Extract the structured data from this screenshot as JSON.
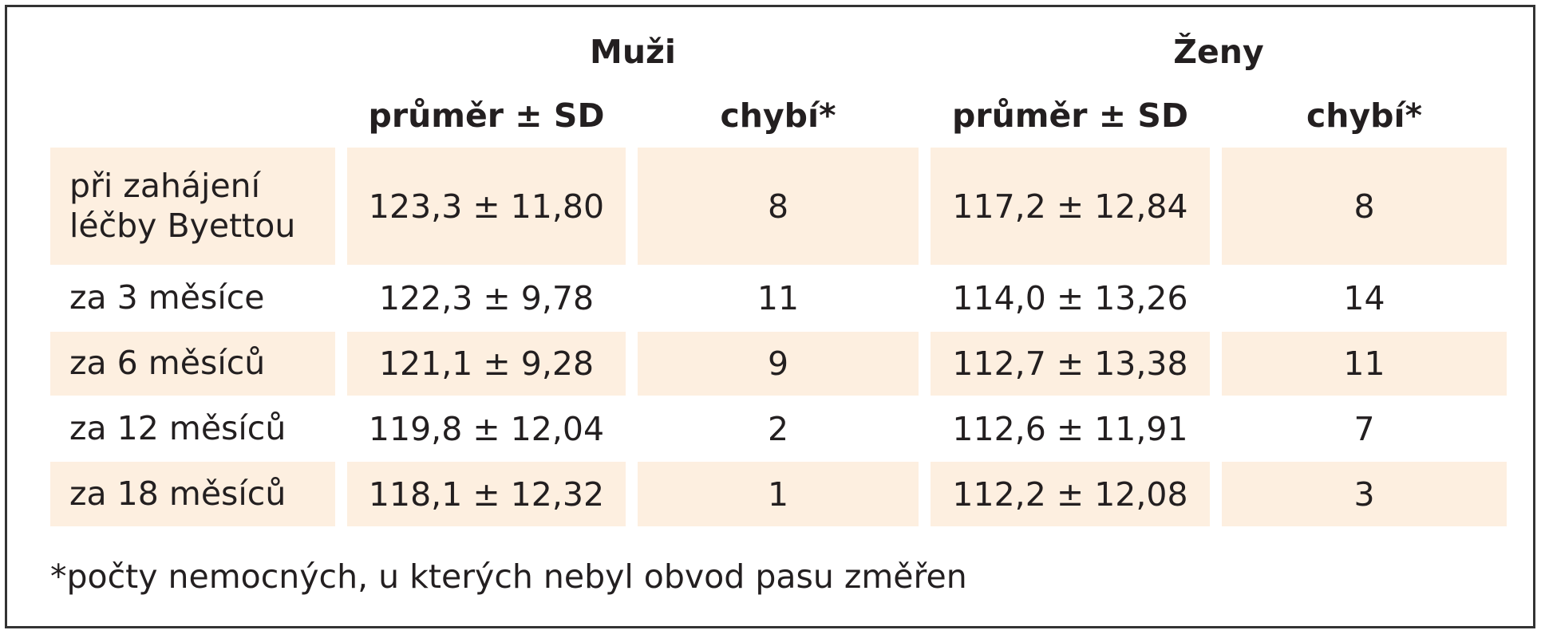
{
  "table": {
    "groups": [
      "Muži",
      "Ženy"
    ],
    "subheaders": [
      "průměr ± SD",
      "chybí*",
      "průměr ± SD",
      "chybí*"
    ],
    "rows": [
      [
        "při zahájení léčby Byettou",
        "123,3 ± 11,80",
        "8",
        "117,2 ± 12,84",
        "8"
      ],
      [
        "za 3 měsíce",
        "122,3 ± 9,78",
        "11",
        "114,0 ± 13,26",
        "14"
      ],
      [
        "za 6 měsíců",
        "121,1 ± 9,28",
        "9",
        "112,7 ± 13,38",
        "11"
      ],
      [
        "za 12 měsíců",
        "119,8 ± 12,04",
        "2",
        "112,6 ± 11,91",
        "7"
      ],
      [
        "za 18 měsíců",
        "118,1 ± 12,32",
        "1",
        "112,2 ± 12,08",
        "3"
      ]
    ],
    "footnote": "*počty nemocných, u kterých nebyl obvod pasu změřen"
  }
}
